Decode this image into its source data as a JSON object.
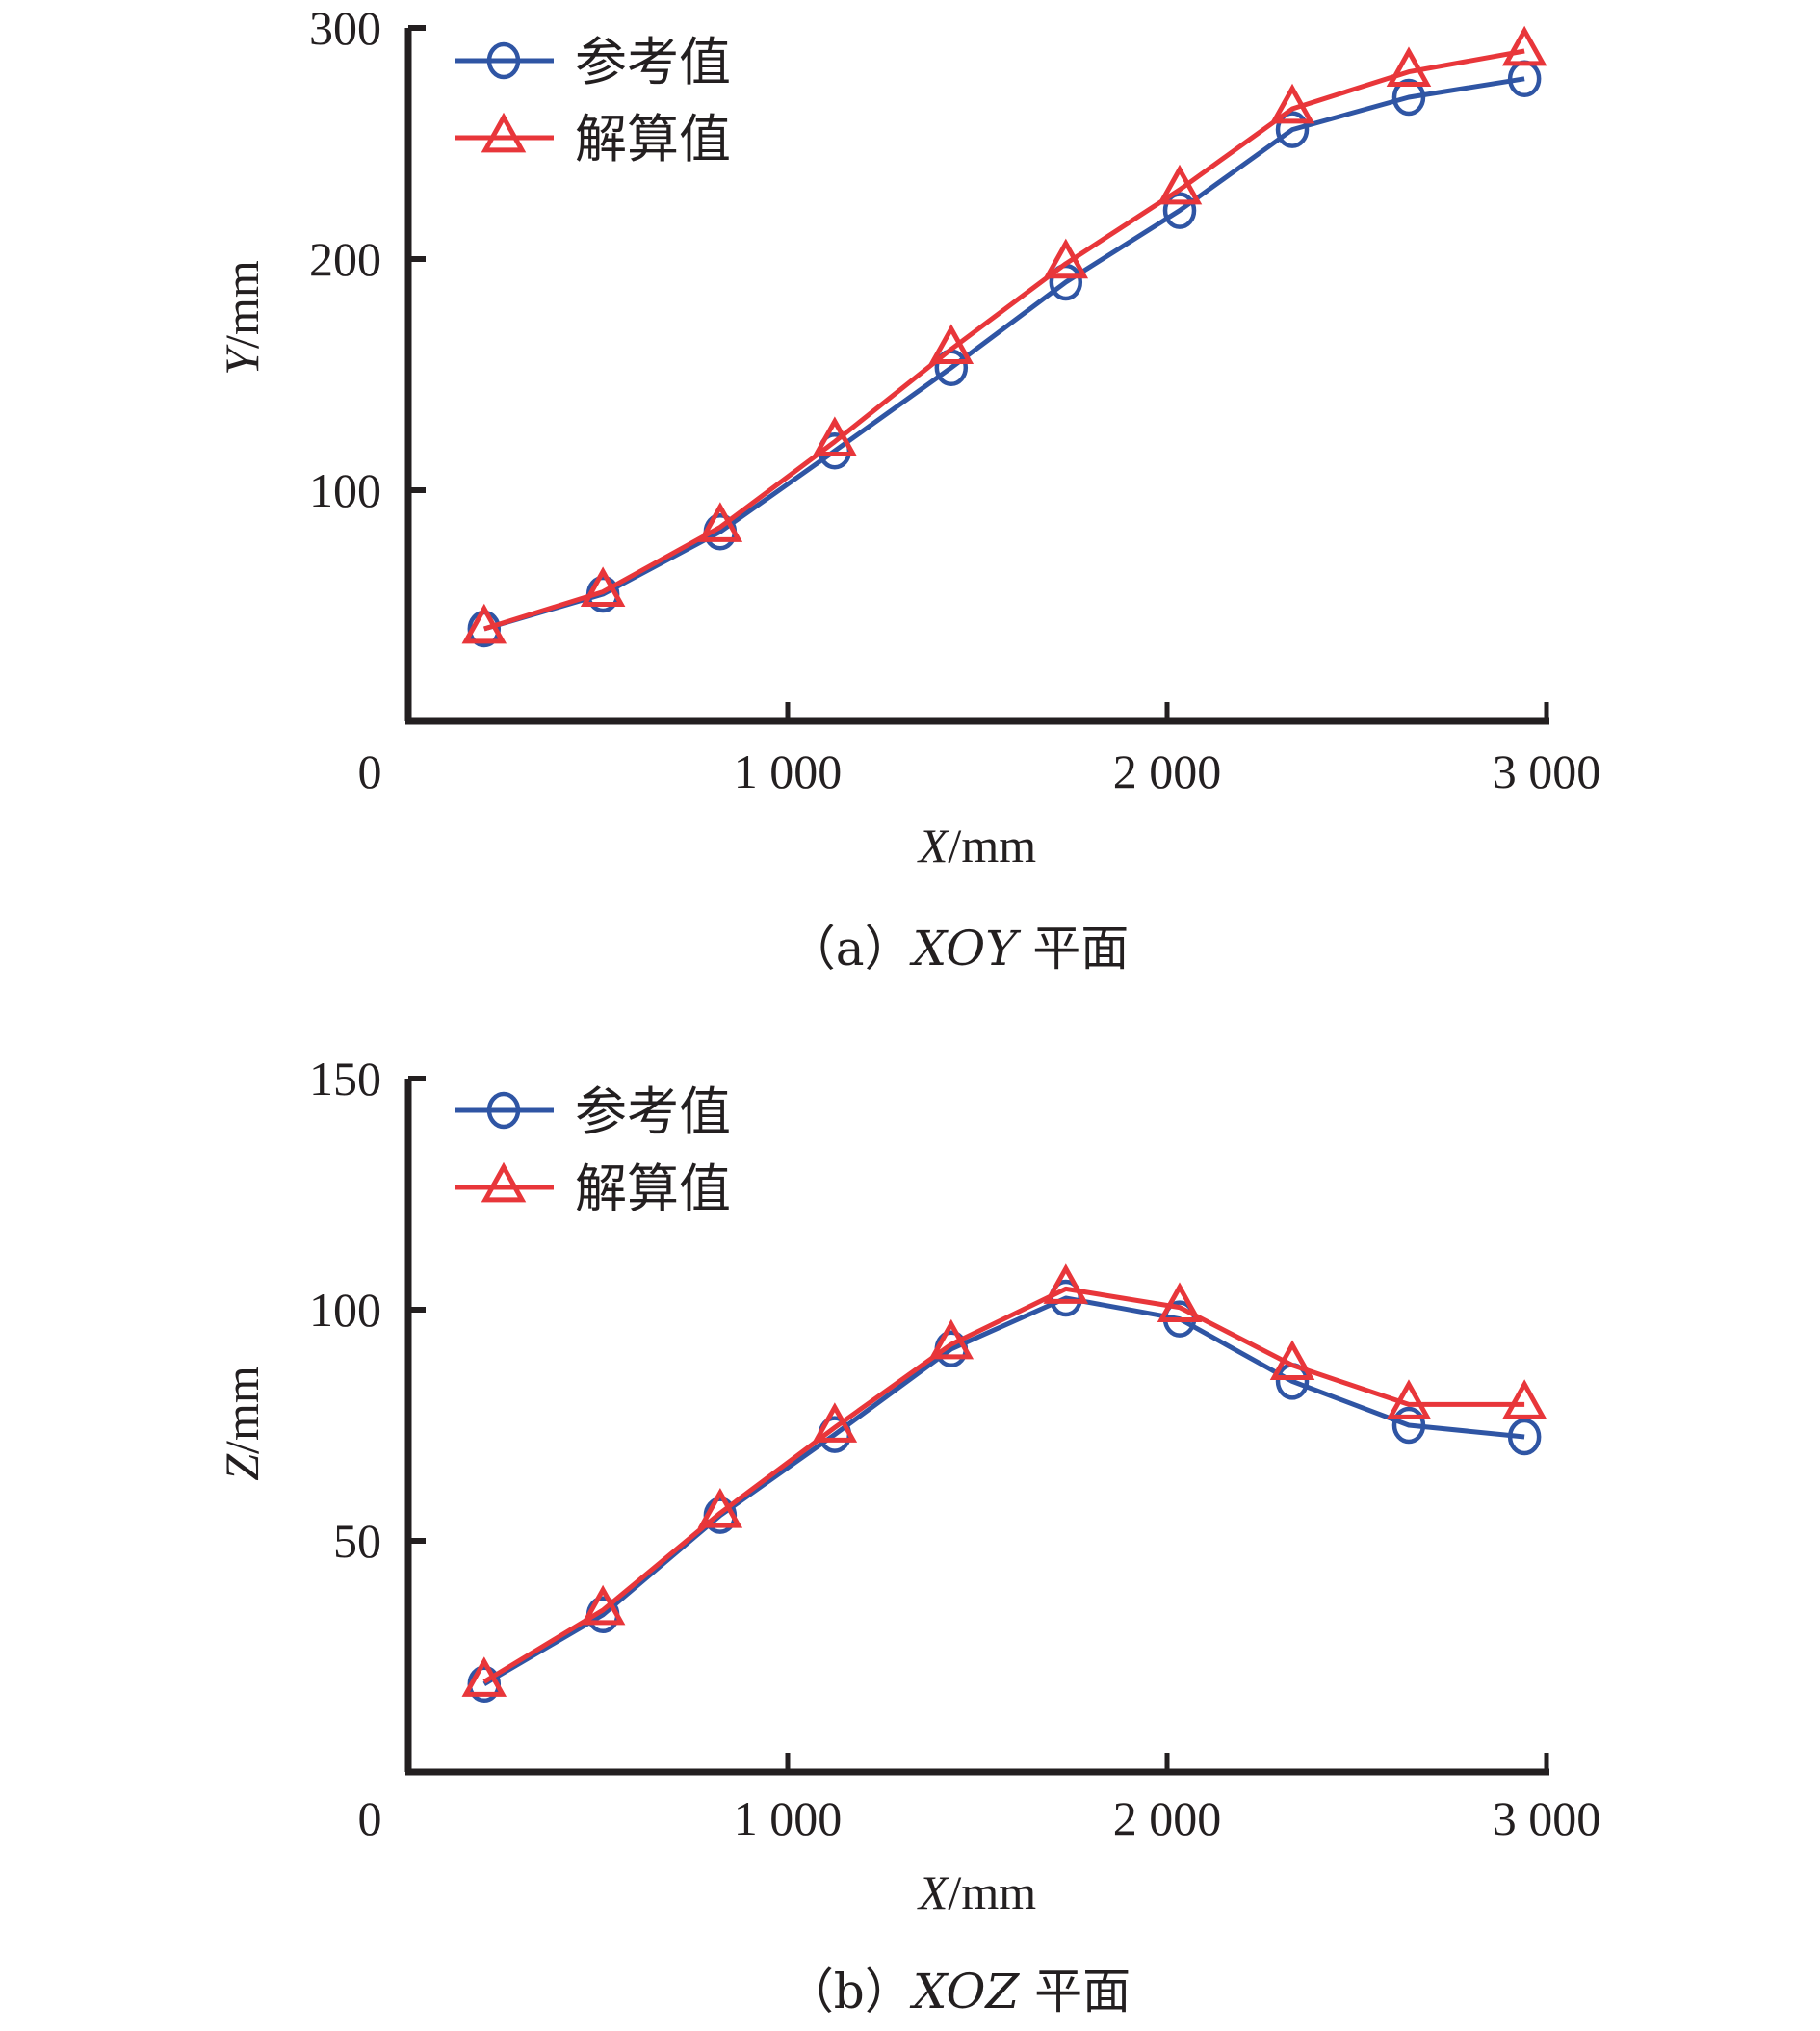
{
  "chart_data": [
    {
      "type": "line",
      "title": "",
      "caption": {
        "prefix": "（a）",
        "italic": "XOY",
        "suffix": " 平面"
      },
      "xlabel": {
        "italic": "X",
        "unit": "/mm"
      },
      "ylabel": {
        "italic": "Y",
        "unit": "/mm"
      },
      "xlim": [
        0,
        3000
      ],
      "ylim": [
        0,
        300
      ],
      "xticks": [
        1000,
        2000,
        3000
      ],
      "xtick_labels": [
        "1 000",
        "2 000",
        "3 000"
      ],
      "yticks": [
        100,
        200,
        300
      ],
      "ytick_labels": [
        "100",
        "200",
        "300"
      ],
      "origin_label": "0",
      "grid": false,
      "legend_position": "top-left",
      "x": [
        200,
        513,
        822,
        1124,
        1431,
        1733,
        2033,
        2330,
        2637,
        2942
      ],
      "series": [
        {
          "name": "参考值",
          "marker": "circle",
          "color": "#2f55a4",
          "values": [
            40,
            55,
            82,
            117,
            153,
            190,
            221,
            256,
            270,
            278
          ]
        },
        {
          "name": "解算值",
          "marker": "triangle",
          "color": "#e8363a",
          "values": [
            40,
            56,
            84,
            121,
            161,
            198,
            230,
            265,
            281,
            290
          ]
        }
      ]
    },
    {
      "type": "line",
      "title": "",
      "caption": {
        "prefix": "（b）",
        "italic": "XOZ",
        "suffix": " 平面"
      },
      "xlabel": {
        "italic": "X",
        "unit": "/mm"
      },
      "ylabel": {
        "italic": "Z",
        "unit": "/mm"
      },
      "xlim": [
        0,
        3000
      ],
      "ylim": [
        0,
        150
      ],
      "xticks": [
        1000,
        2000,
        3000
      ],
      "xtick_labels": [
        "1 000",
        "2 000",
        "3 000"
      ],
      "yticks": [
        50,
        100,
        150
      ],
      "ytick_labels": [
        "50",
        "100",
        "150"
      ],
      "origin_label": "0",
      "grid": false,
      "legend_position": "top-left",
      "x": [
        200,
        513,
        822,
        1124,
        1431,
        1733,
        2033,
        2330,
        2637,
        2942
      ],
      "series": [
        {
          "name": "参考值",
          "marker": "circle",
          "color": "#2f55a4",
          "values": [
            19,
            34,
            55.5,
            73,
            91.5,
            102.5,
            98,
            84.5,
            75,
            72.5
          ]
        },
        {
          "name": "解算值",
          "marker": "triangle",
          "color": "#e8363a",
          "values": [
            19.5,
            35,
            56,
            74.5,
            92.5,
            104.5,
            100.5,
            88,
            79.5,
            79.5
          ]
        }
      ]
    }
  ]
}
